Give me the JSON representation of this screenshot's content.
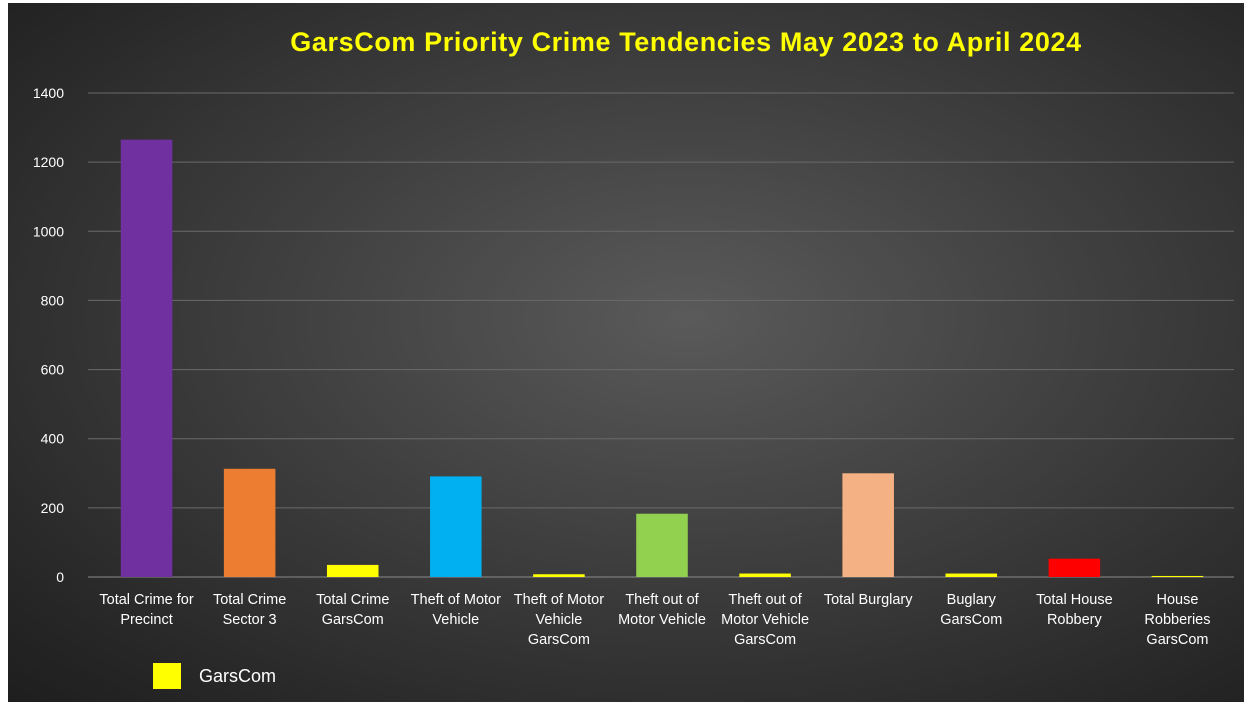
{
  "chart_data": {
    "type": "bar",
    "title": "GarsCom Priority Crime Tendencies May 2023 to April 2024",
    "xlabel": "",
    "ylabel": "",
    "ylim": [
      0,
      1400
    ],
    "yticks": [
      0,
      200,
      400,
      600,
      800,
      1000,
      1200,
      1400
    ],
    "grid": true,
    "categories": [
      [
        "Total Crime for",
        "Precinct"
      ],
      [
        "Total Crime",
        "Sector 3"
      ],
      [
        "Total Crime",
        "GarsCom"
      ],
      [
        "Theft of Motor",
        "Vehicle"
      ],
      [
        "Theft of Motor",
        "Vehicle",
        "GarsCom"
      ],
      [
        "Theft out of",
        "Motor Vehicle"
      ],
      [
        "Theft out of",
        "Motor Vehicle",
        "GarsCom"
      ],
      [
        "Total Burglary"
      ],
      [
        "Buglary",
        "GarsCom"
      ],
      [
        "Total House",
        "Robbery"
      ],
      [
        "House",
        "Robberies",
        "GarsCom"
      ]
    ],
    "values": [
      1265,
      313,
      35,
      291,
      8,
      183,
      10,
      300,
      10,
      53,
      3
    ],
    "colors": [
      "#7030a0",
      "#ed7d31",
      "#ffff00",
      "#00b0f0",
      "#ffff00",
      "#92d050",
      "#ffff00",
      "#f4b183",
      "#ffff00",
      "#ff0000",
      "#ffff00"
    ],
    "legend": {
      "position": "bottom-left",
      "entries": [
        {
          "label": "GarsCom",
          "color": "#ffff00"
        }
      ]
    }
  }
}
